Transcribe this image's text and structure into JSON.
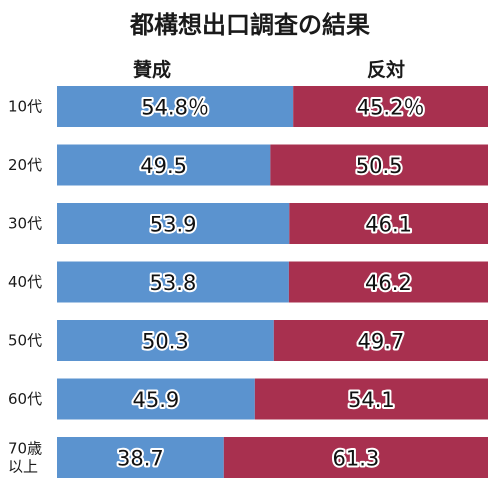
{
  "chart_data": {
    "type": "bar",
    "subtype": "stacked-horizontal-100",
    "title": "都構想出口調査の結果",
    "categories": [
      "10代",
      "20代",
      "30代",
      "40代",
      "50代",
      "60代",
      "70歳以上"
    ],
    "category_lines": [
      [
        "10代"
      ],
      [
        "20代"
      ],
      [
        "30代"
      ],
      [
        "40代"
      ],
      [
        "50代"
      ],
      [
        "60代"
      ],
      [
        "70歳",
        "以上"
      ]
    ],
    "series": [
      {
        "name": "賛成",
        "values": [
          54.8,
          49.5,
          53.9,
          53.8,
          50.3,
          45.9,
          38.7
        ],
        "color": "#5b93cf"
      },
      {
        "name": "反対",
        "values": [
          45.2,
          50.5,
          46.1,
          46.2,
          49.7,
          54.1,
          61.3
        ],
        "color": "#a8304f"
      }
    ],
    "value_labels": [
      [
        "54.8％",
        "49.5",
        "53.9",
        "53.8",
        "50.3",
        "45.9",
        "38.7"
      ],
      [
        "45.2％",
        "50.5",
        "46.1",
        "46.2",
        "49.7",
        "54.1",
        "61.3"
      ]
    ],
    "xlim": [
      0,
      100
    ],
    "legend_placement": "top"
  }
}
